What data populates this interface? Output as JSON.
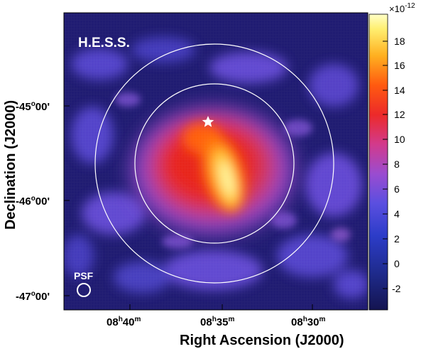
{
  "figure": {
    "telescope_label": "H.E.S.S.",
    "psf_label": "PSF",
    "x_axis_label": "Right Ascension (J2000)",
    "y_axis_label": "Declination (J2000)",
    "ra_ticks": [
      {
        "h": "08",
        "m": "40"
      },
      {
        "h": "08",
        "m": "35"
      },
      {
        "h": "08",
        "m": "30"
      }
    ],
    "dec_ticks": [
      {
        "deg": "-45",
        "min": "00'"
      },
      {
        "deg": "-46",
        "min": "00'"
      },
      {
        "deg": "-47",
        "min": "00'"
      }
    ],
    "colorbar": {
      "multiplier_base": "×10",
      "multiplier_exp": "-12",
      "ticks": [
        "18",
        "16",
        "14",
        "12",
        "10",
        "8",
        "6",
        "4",
        "2",
        "0",
        "-2"
      ]
    },
    "colors": {
      "background_low": "#1e1a6b",
      "mid_purple": "#6a4bd8",
      "high_red": "#e8221c",
      "peak_yellow": "#fff59a",
      "circle": "#ffffff"
    },
    "markers": [
      "star-marker",
      "inner-circle",
      "outer-circle",
      "psf-circle"
    ]
  }
}
